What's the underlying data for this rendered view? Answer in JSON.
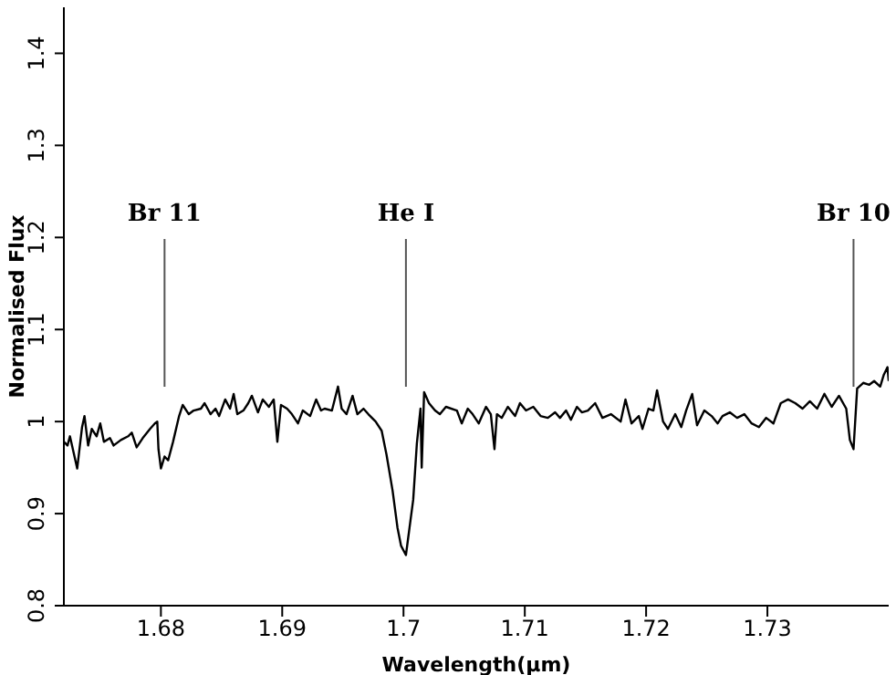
{
  "chart_data": {
    "type": "line",
    "xlabel": "Wavelength(μm)",
    "ylabel": "Normalised Flux",
    "xlim": [
      1.672,
      1.74
    ],
    "ylim": [
      0.8,
      1.45
    ],
    "xticks": [
      1.68,
      1.69,
      1.7,
      1.71,
      1.72,
      1.73
    ],
    "yticks": [
      0.8,
      0.9,
      1,
      1.1,
      1.2,
      1.3,
      1.4
    ],
    "marker": "none",
    "line_style": "solid",
    "ref_lines": [
      {
        "axis": "x",
        "value": 1.6803,
        "label": "Br 11",
        "color": "#555555"
      },
      {
        "axis": "x",
        "value": 1.7002,
        "label": "He I",
        "color": "#555555"
      },
      {
        "axis": "x",
        "value": 1.7371,
        "label": "Br 10",
        "color": "#555555"
      }
    ],
    "series": [
      {
        "color": "#000000",
        "x": [
          1.672,
          1.6723,
          1.6725,
          1.6731,
          1.6735,
          1.6737,
          1.674,
          1.6743,
          1.6747,
          1.675,
          1.6753,
          1.6758,
          1.6761,
          1.6767,
          1.6773,
          1.6776,
          1.678,
          1.6785,
          1.6791,
          1.6795,
          1.6797,
          1.6798,
          1.68,
          1.6803,
          1.6806,
          1.681,
          1.6815,
          1.6818,
          1.6823,
          1.6827,
          1.6833,
          1.6836,
          1.6841,
          1.6845,
          1.6848,
          1.6853,
          1.6857,
          1.686,
          1.6863,
          1.6868,
          1.6872,
          1.6875,
          1.688,
          1.6884,
          1.6889,
          1.6893,
          1.6896,
          1.6899,
          1.6904,
          1.6908,
          1.6913,
          1.6917,
          1.6923,
          1.6928,
          1.6932,
          1.6935,
          1.6941,
          1.6946,
          1.6949,
          1.6953,
          1.6958,
          1.6962,
          1.6967,
          1.6971,
          1.6977,
          1.6982,
          1.6986,
          1.6991,
          1.6995,
          1.6998,
          1.7002,
          1.7005,
          1.7008,
          1.7011,
          1.7014,
          1.7015,
          1.7017,
          1.7021,
          1.7026,
          1.703,
          1.7035,
          1.7044,
          1.7048,
          1.7053,
          1.7057,
          1.7062,
          1.7068,
          1.7072,
          1.7075,
          1.7077,
          1.7081,
          1.7086,
          1.7092,
          1.7096,
          1.7101,
          1.7107,
          1.7113,
          1.7119,
          1.7125,
          1.7129,
          1.7134,
          1.7138,
          1.7143,
          1.7147,
          1.7152,
          1.7158,
          1.7164,
          1.7171,
          1.7179,
          1.7183,
          1.7188,
          1.7194,
          1.7197,
          1.7202,
          1.7206,
          1.7209,
          1.7214,
          1.7218,
          1.7224,
          1.7229,
          1.7233,
          1.7238,
          1.7242,
          1.7248,
          1.7254,
          1.7259,
          1.7263,
          1.7269,
          1.7275,
          1.7281,
          1.7287,
          1.7293,
          1.7299,
          1.7305,
          1.7311,
          1.7317,
          1.7323,
          1.7329,
          1.7335,
          1.7341,
          1.7347,
          1.7353,
          1.7359,
          1.7365,
          1.7368,
          1.7371,
          1.7374,
          1.7379,
          1.7384,
          1.7388,
          1.7393,
          1.7396,
          1.7399,
          1.74
        ],
        "values": [
          0.978,
          0.974,
          0.984,
          0.949,
          0.994,
          1.006,
          0.974,
          0.992,
          0.984,
          0.998,
          0.978,
          0.982,
          0.974,
          0.98,
          0.984,
          0.988,
          0.972,
          0.982,
          0.992,
          0.998,
          1.0,
          0.97,
          0.949,
          0.962,
          0.958,
          0.978,
          1.006,
          1.018,
          1.008,
          1.012,
          1.014,
          1.02,
          1.008,
          1.014,
          1.006,
          1.024,
          1.014,
          1.03,
          1.008,
          1.012,
          1.02,
          1.028,
          1.01,
          1.024,
          1.016,
          1.024,
          0.978,
          1.018,
          1.014,
          1.008,
          0.998,
          1.012,
          1.006,
          1.024,
          1.012,
          1.014,
          1.012,
          1.038,
          1.014,
          1.008,
          1.028,
          1.008,
          1.014,
          1.008,
          1.0,
          0.99,
          0.964,
          0.925,
          0.885,
          0.865,
          0.855,
          0.885,
          0.915,
          0.976,
          1.014,
          0.95,
          1.032,
          1.02,
          1.012,
          1.008,
          1.016,
          1.012,
          0.998,
          1.014,
          1.008,
          0.998,
          1.016,
          1.008,
          0.97,
          1.008,
          1.004,
          1.016,
          1.006,
          1.02,
          1.012,
          1.016,
          1.006,
          1.004,
          1.01,
          1.004,
          1.012,
          1.002,
          1.016,
          1.01,
          1.012,
          1.02,
          1.004,
          1.008,
          1.0,
          1.024,
          0.998,
          1.006,
          0.992,
          1.014,
          1.012,
          1.034,
          1.0,
          0.992,
          1.008,
          0.994,
          1.012,
          1.03,
          0.996,
          1.012,
          1.006,
          0.998,
          1.006,
          1.01,
          1.004,
          1.008,
          0.998,
          0.994,
          1.004,
          0.998,
          1.02,
          1.024,
          1.02,
          1.014,
          1.022,
          1.014,
          1.03,
          1.016,
          1.028,
          1.014,
          0.98,
          0.97,
          1.036,
          1.042,
          1.04,
          1.044,
          1.038,
          1.051,
          1.059,
          1.044
        ]
      }
    ]
  }
}
